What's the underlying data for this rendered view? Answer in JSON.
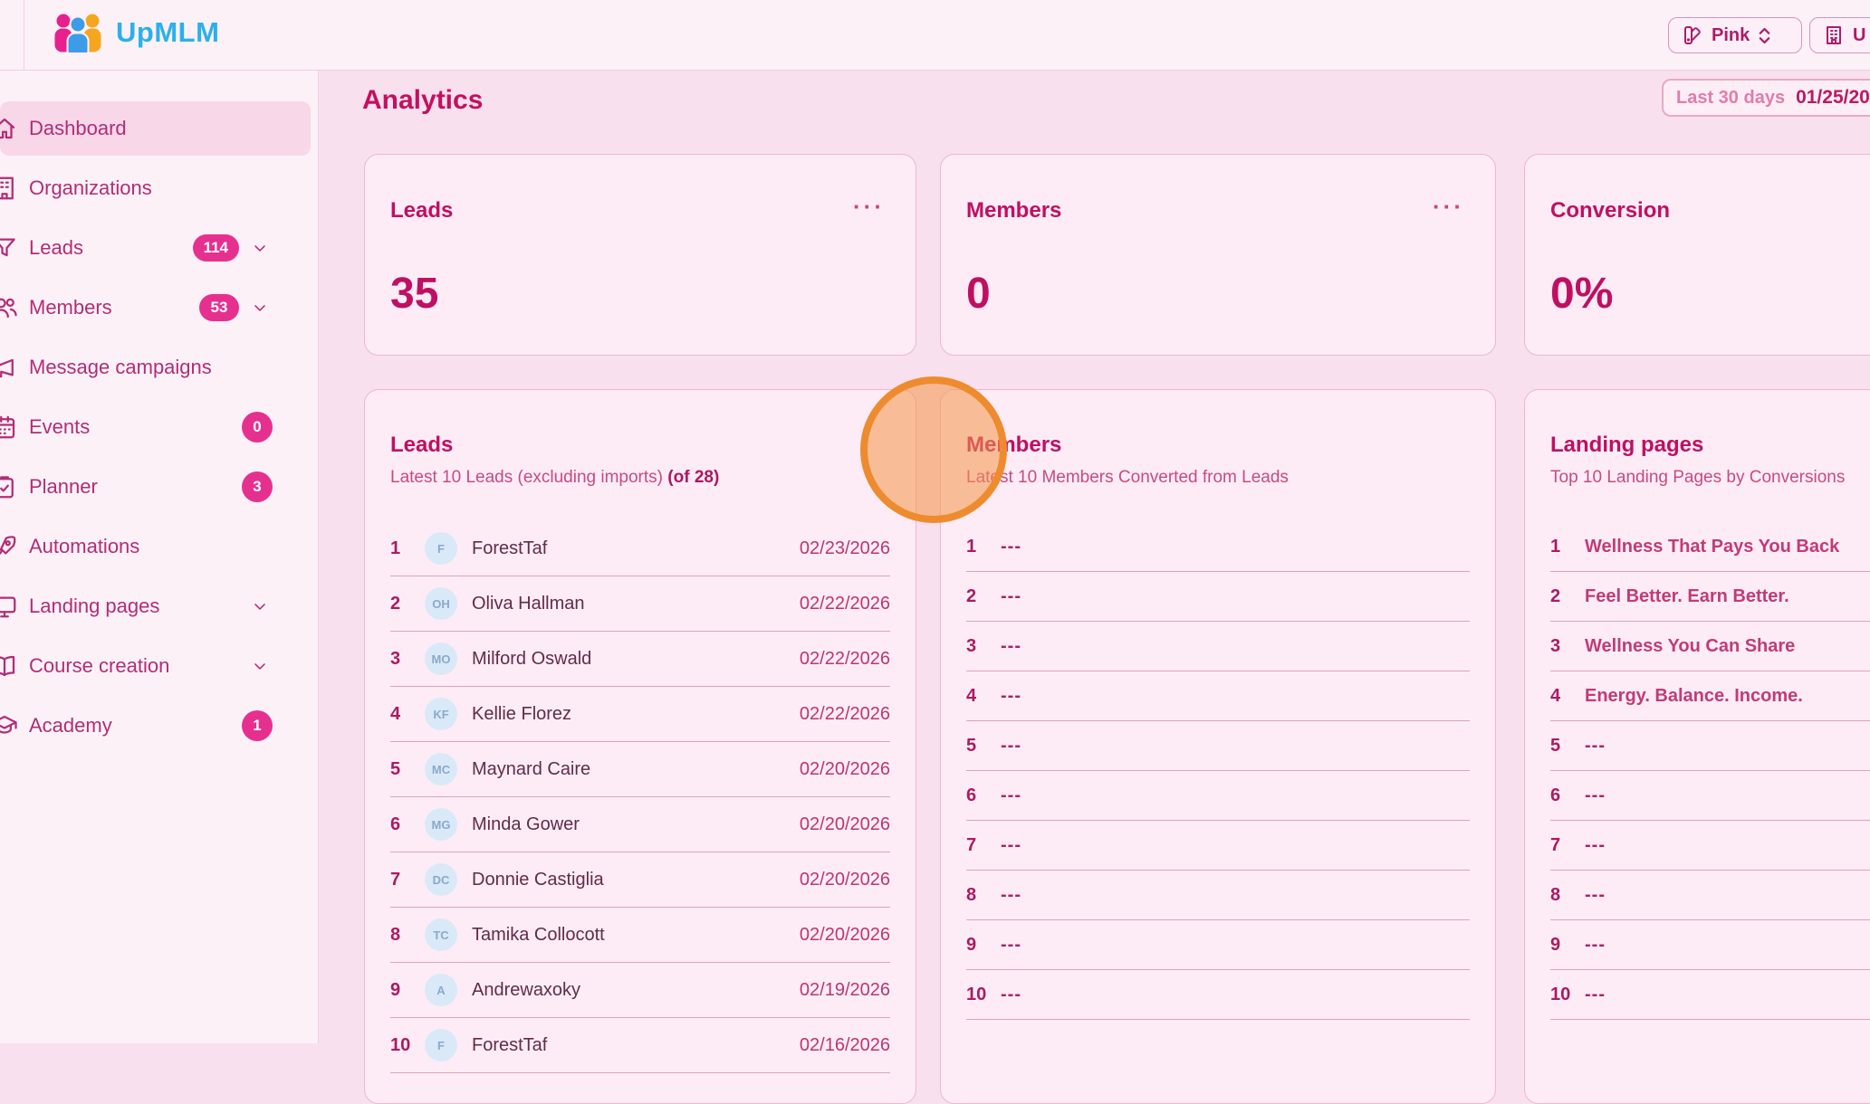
{
  "header": {
    "brand": "UpMLM",
    "theme_button": {
      "label": "Pink",
      "icon": "palette"
    },
    "org_button": {
      "label": "U",
      "icon": "building"
    }
  },
  "sidebar": {
    "items": [
      {
        "label": "Dashboard",
        "icon": "home",
        "selected": true
      },
      {
        "label": "Organizations",
        "icon": "building"
      },
      {
        "label": "Leads",
        "icon": "funnel",
        "badge": "114",
        "chevron": true
      },
      {
        "label": "Members",
        "icon": "people",
        "badge": "53",
        "chevron": true
      },
      {
        "label": "Message campaigns",
        "icon": "megaphone"
      },
      {
        "label": "Events",
        "icon": "calendar",
        "badge": "0"
      },
      {
        "label": "Planner",
        "icon": "clipboard",
        "badge": "3"
      },
      {
        "label": "Automations",
        "icon": "rocket"
      },
      {
        "label": "Landing pages",
        "icon": "monitor",
        "chevron": true
      },
      {
        "label": "Course creation",
        "icon": "book",
        "chevron": true
      },
      {
        "label": "Academy",
        "icon": "graduation-cap",
        "badge": "1"
      }
    ]
  },
  "page": {
    "title": "Analytics",
    "date_range": {
      "preset": "Last 30 days",
      "value": "01/25/20"
    }
  },
  "stat_cards": [
    {
      "title": "Leads",
      "value": "35",
      "menu": "···"
    },
    {
      "title": "Members",
      "value": "0",
      "menu": "···"
    },
    {
      "title": "Conversion",
      "value": "0%"
    }
  ],
  "leads_list": {
    "title": "Leads",
    "subtitle": "Latest 10 Leads (excluding imports)",
    "subtitle_bold": "(of 28)",
    "rows": [
      {
        "rank": "1",
        "initials": "F",
        "name": "ForestTaf",
        "date": "02/23/2026"
      },
      {
        "rank": "2",
        "initials": "OH",
        "name": "Oliva Hallman",
        "date": "02/22/2026"
      },
      {
        "rank": "3",
        "initials": "MO",
        "name": "Milford Oswald",
        "date": "02/22/2026"
      },
      {
        "rank": "4",
        "initials": "KF",
        "name": "Kellie Florez",
        "date": "02/22/2026"
      },
      {
        "rank": "5",
        "initials": "MC",
        "name": "Maynard Caire",
        "date": "02/20/2026"
      },
      {
        "rank": "6",
        "initials": "MG",
        "name": "Minda Gower",
        "date": "02/20/2026"
      },
      {
        "rank": "7",
        "initials": "DC",
        "name": "Donnie Castiglia",
        "date": "02/20/2026"
      },
      {
        "rank": "8",
        "initials": "TC",
        "name": "Tamika Collocott",
        "date": "02/20/2026"
      },
      {
        "rank": "9",
        "initials": "A",
        "name": "Andrewaxoky",
        "date": "02/19/2026"
      },
      {
        "rank": "10",
        "initials": "F",
        "name": "ForestTaf",
        "date": "02/16/2026"
      }
    ]
  },
  "members_list": {
    "title": "Members",
    "subtitle": "Latest 10 Members Converted from Leads",
    "rows": [
      {
        "rank": "1",
        "name": "---"
      },
      {
        "rank": "2",
        "name": "---"
      },
      {
        "rank": "3",
        "name": "---"
      },
      {
        "rank": "4",
        "name": "---"
      },
      {
        "rank": "5",
        "name": "---"
      },
      {
        "rank": "6",
        "name": "---"
      },
      {
        "rank": "7",
        "name": "---"
      },
      {
        "rank": "8",
        "name": "---"
      },
      {
        "rank": "9",
        "name": "---"
      },
      {
        "rank": "10",
        "name": "---"
      }
    ]
  },
  "landing_pages_list": {
    "title": "Landing pages",
    "subtitle": "Top 10 Landing Pages by Conversions",
    "rows": [
      {
        "rank": "1",
        "name": "Wellness That Pays You Back"
      },
      {
        "rank": "2",
        "name": "Feel Better. Earn Better."
      },
      {
        "rank": "3",
        "name": "Wellness You Can Share"
      },
      {
        "rank": "4",
        "name": "Energy. Balance. Income."
      },
      {
        "rank": "5",
        "name": "---"
      },
      {
        "rank": "6",
        "name": "---"
      },
      {
        "rank": "7",
        "name": "---"
      },
      {
        "rank": "8",
        "name": "---"
      },
      {
        "rank": "9",
        "name": "---"
      },
      {
        "rank": "10",
        "name": "---"
      }
    ]
  },
  "colors": {
    "accent": "#e6308f",
    "title": "#c00f62",
    "brand_blue": "#2bb0ea",
    "click_indicator": "#ee8b2e"
  }
}
